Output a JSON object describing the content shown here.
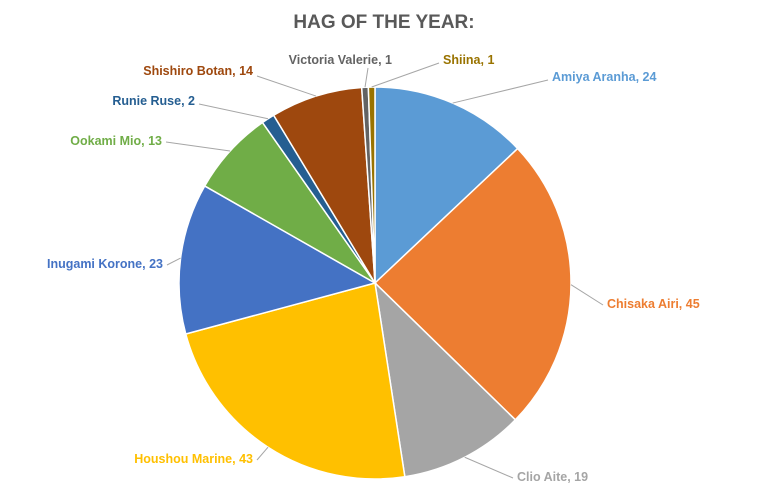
{
  "chart_data": {
    "type": "pie",
    "title": "HAG OF THE YEAR:",
    "categories": [
      "Amiya Aranha",
      "Chisaka Airi",
      "Clio Aite",
      "Houshou Marine",
      "Inugami Korone",
      "Ookami Mio",
      "Runie Ruse",
      "Shishiro Botan",
      "Victoria Valerie",
      "Shiina"
    ],
    "values": [
      24,
      45,
      19,
      43,
      23,
      13,
      2,
      14,
      1,
      1
    ],
    "value_labels": [
      ", 24",
      ", 45",
      ", 19",
      ", 43",
      ", 23",
      ", 13",
      ", 2",
      ", 14",
      ", 1",
      ", 1"
    ],
    "colors": [
      "#5b9bd5",
      "#ed7d31",
      "#a5a5a5",
      "#ffc000",
      "#4472c4",
      "#70ad47",
      "#255e91",
      "#9e480e",
      "#636363",
      "#997300"
    ]
  }
}
